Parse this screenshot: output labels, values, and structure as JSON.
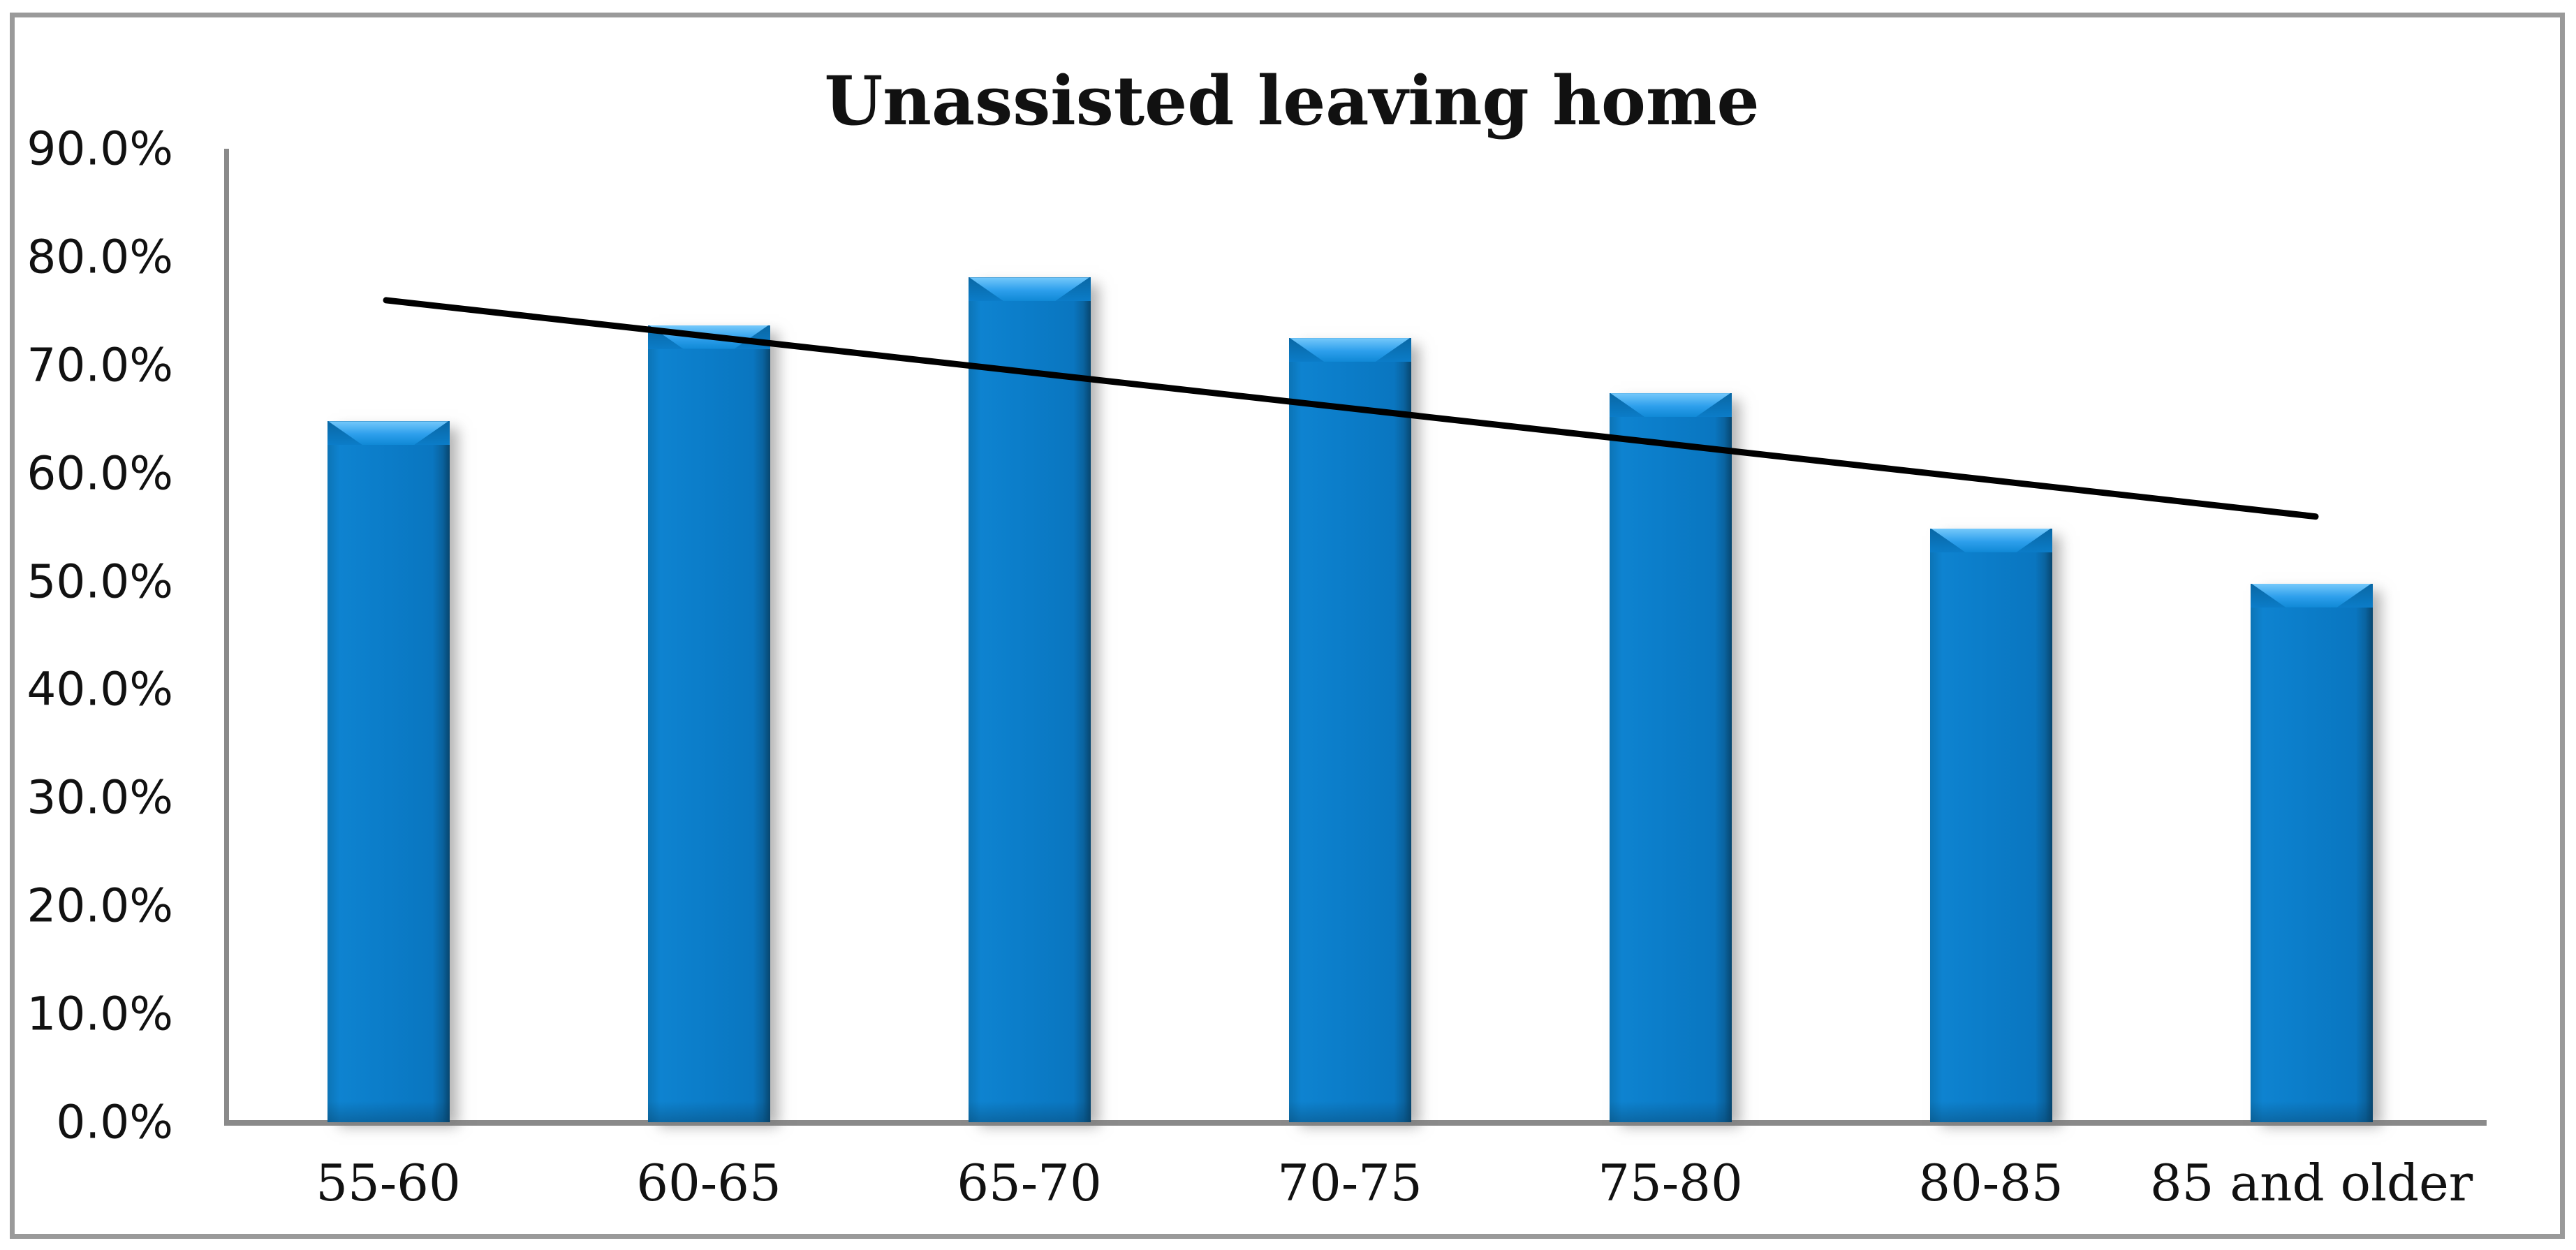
{
  "figure": {
    "background": "#ffffff",
    "frame_color": "#9a9a9a",
    "axis_color": "#8a8a8a"
  },
  "chart_data": {
    "type": "bar",
    "title": "Unassisted leaving home",
    "categories": [
      "55-60",
      "60-65",
      "65-70",
      "70-75",
      "75-80",
      "80-85",
      "85 and older"
    ],
    "values": [
      64.8,
      73.7,
      78.1,
      72.5,
      67.4,
      54.9,
      49.8
    ],
    "unit": "%",
    "bar_color": "#0b7cc8",
    "xlabel": "",
    "ylabel": "",
    "ylim": [
      0,
      90
    ],
    "ytick_step": 10,
    "yticks": [
      {
        "label": "90.0%",
        "value": 90
      },
      {
        "label": "80.0%",
        "value": 80
      },
      {
        "label": "70.0%",
        "value": 70
      },
      {
        "label": "60.0%",
        "value": 60
      },
      {
        "label": "50.0%",
        "value": 50
      },
      {
        "label": "40.0%",
        "value": 40
      },
      {
        "label": "30.0%",
        "value": 30
      },
      {
        "label": "20.0%",
        "value": 20
      },
      {
        "label": "10.0%",
        "value": 10
      },
      {
        "label": "0.0%",
        "value": 0
      }
    ],
    "grid": false,
    "legend": false,
    "trendline": {
      "type": "linear",
      "color": "#000000",
      "start_value": 76.0,
      "end_value": 56.0
    }
  }
}
